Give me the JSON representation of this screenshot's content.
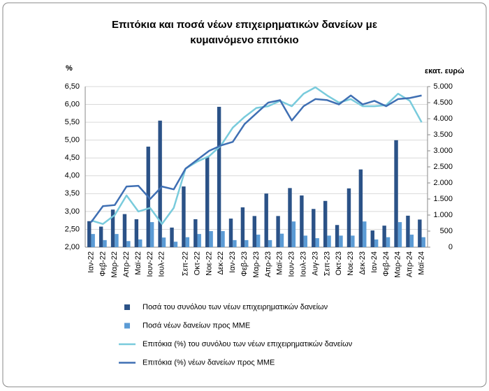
{
  "chart_data": {
    "type": "combo",
    "title": "Επιτόκια και ποσά νέων επιχειρηματικών δανείων με",
    "subtitle": "κυμαινόμενο επιτόκιο",
    "y_label": "%",
    "y2_label": "εκατ. ευρώ",
    "categories": [
      "Ιαν-22",
      "Φεβ-22",
      "Μαρ-22",
      "Απρ-22",
      "Μαϊ-22",
      "Ιουν-22",
      "Ιουλ-22",
      null,
      "Σεπ-22",
      "Οκτ-22",
      "Νοε-22",
      "Δεκ-22",
      "Ιαν-23",
      "Φεβ-23",
      "Μαρ-23",
      "Απρ-23",
      "Μαϊ-23",
      "Ιουν-23",
      "Ιουλ-23",
      "Αυγ-23",
      "Σεπ-23",
      "Οκτ-23",
      "Νοε-23",
      "Δεκ-23",
      "Ιαν-24",
      "Φεβ-24",
      "Μαρ-24",
      "Απρ-24",
      "Μαϊ-24"
    ],
    "series": [
      {
        "name": "Ποσά του συνόλου των νέων επιχειρηματικών δανείων",
        "type": "bar",
        "axis": "y2",
        "color": "#2b5287",
        "values": [
          810,
          640,
          1170,
          1030,
          870,
          3130,
          3940,
          610,
          1890,
          870,
          2800,
          4370,
          890,
          1240,
          970,
          1670,
          970,
          1840,
          1610,
          1190,
          1440,
          690,
          1830,
          2420,
          520,
          670,
          3330,
          980,
          860
        ]
      },
      {
        "name": "Ποσά νέων δανείων προς ΜΜΕ",
        "type": "bar",
        "axis": "y2",
        "color": "#5b9bd5",
        "values": [
          410,
          220,
          410,
          190,
          240,
          780,
          300,
          170,
          310,
          410,
          500,
          500,
          220,
          220,
          390,
          220,
          420,
          800,
          360,
          280,
          360,
          360,
          360,
          800,
          240,
          310,
          780,
          390,
          310
        ]
      },
      {
        "name": "Επιτόκια (%) του συνόλου των νέων επιχειρηματικών δανείων",
        "type": "line",
        "color": "#79cbdc",
        "values": [
          2.75,
          2.65,
          2.9,
          3.45,
          3.0,
          3.1,
          2.65,
          3.1,
          4.2,
          4.4,
          4.55,
          4.85,
          5.35,
          5.65,
          5.9,
          5.95,
          6.1,
          5.95,
          6.3,
          6.48,
          6.25,
          6.05,
          6.15,
          5.95,
          5.95,
          5.98,
          6.3,
          6.1,
          5.5
        ]
      },
      {
        "name": "Επιτόκια (%) νέων δανείων προς ΜΜΕ",
        "type": "line",
        "color": "#3f6fb3",
        "values": [
          2.7,
          3.15,
          3.18,
          3.7,
          3.72,
          3.35,
          3.7,
          3.62,
          4.2,
          4.45,
          4.7,
          4.85,
          4.95,
          5.45,
          5.75,
          6.05,
          6.12,
          5.55,
          5.95,
          6.15,
          6.12,
          6.0,
          6.25,
          6.0,
          6.1,
          5.95,
          6.15,
          6.18,
          6.25
        ]
      }
    ],
    "ylim": [
      2,
      6.5
    ],
    "yticks": [
      {
        "value": 2,
        "label": "2,00"
      },
      {
        "value": 2.5,
        "label": "2,50"
      },
      {
        "value": 3,
        "label": "3,00"
      },
      {
        "value": 3.5,
        "label": "3,50"
      },
      {
        "value": 4,
        "label": "4,00"
      },
      {
        "value": 4.5,
        "label": "4,50"
      },
      {
        "value": 5,
        "label": "5,00"
      },
      {
        "value": 5.5,
        "label": "5,50"
      },
      {
        "value": 6,
        "label": "6,00"
      },
      {
        "value": 6.5,
        "label": "6,50"
      }
    ],
    "y2lim": [
      0,
      5000
    ],
    "y2ticks": [
      0,
      500,
      {
        "value": 1000,
        "label": "1.000"
      },
      {
        "value": 1500,
        "label": "1.500"
      },
      {
        "value": 2000,
        "label": "2.000"
      },
      {
        "value": 2500,
        "label": "2.500"
      },
      {
        "value": 3000,
        "label": "3.000"
      },
      {
        "value": 3500,
        "label": "3.500"
      },
      {
        "value": 4000,
        "label": "4.000"
      },
      {
        "value": 4500,
        "label": "4.500"
      },
      {
        "value": 5000,
        "label": "5.000"
      }
    ],
    "grid": true
  }
}
